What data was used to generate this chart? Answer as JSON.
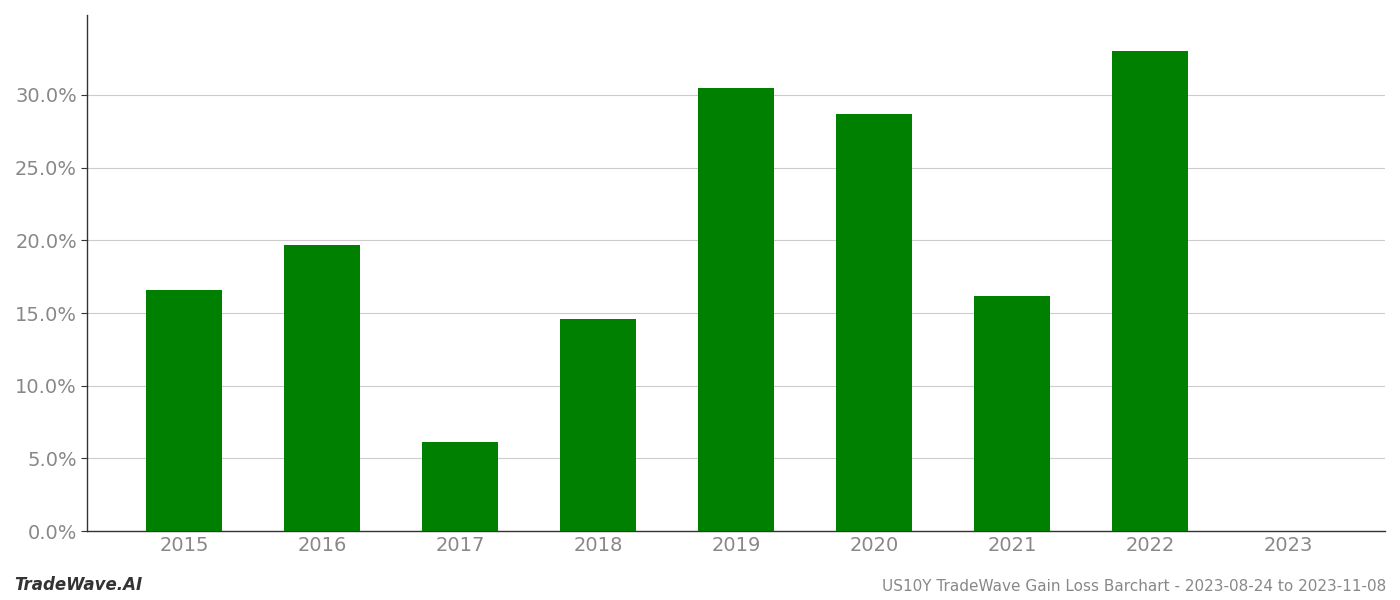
{
  "categories": [
    "2015",
    "2016",
    "2017",
    "2018",
    "2019",
    "2020",
    "2021",
    "2022",
    "2023"
  ],
  "values": [
    0.166,
    0.197,
    0.061,
    0.146,
    0.305,
    0.287,
    0.162,
    0.33,
    null
  ],
  "bar_color": "#008000",
  "background_color": "#ffffff",
  "grid_color": "#cccccc",
  "ylabel_color": "#888888",
  "xlabel_color": "#888888",
  "title_text": "US10Y TradeWave Gain Loss Barchart - 2023-08-24 to 2023-11-08",
  "watermark_text": "TradeWave.AI",
  "ylim": [
    0,
    0.355
  ],
  "yticks": [
    0.0,
    0.05,
    0.1,
    0.15,
    0.2,
    0.25,
    0.3
  ],
  "title_fontsize": 11,
  "watermark_fontsize": 12,
  "tick_fontsize": 14,
  "bar_width": 0.55
}
